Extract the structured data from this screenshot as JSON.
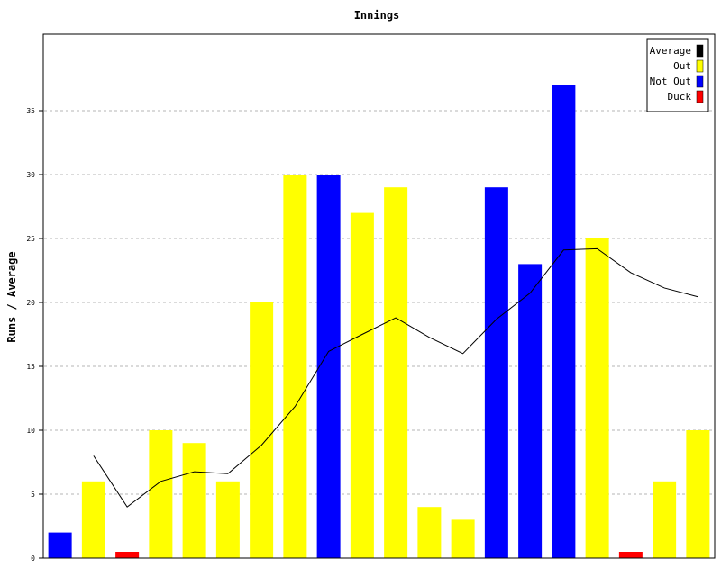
{
  "chart_data": {
    "type": "bar",
    "title": "Innings",
    "xlabel": "",
    "ylabel": "Runs / Average",
    "ylim": [
      0,
      41
    ],
    "yticks": [
      0,
      5,
      10,
      15,
      20,
      25,
      30,
      35
    ],
    "grid": true,
    "legend_position": "top-right",
    "legend": [
      {
        "label": "Average",
        "color": "#000000"
      },
      {
        "label": "Out",
        "color": "#ffff00"
      },
      {
        "label": "Not Out",
        "color": "#0000ff"
      },
      {
        "label": "Duck",
        "color": "#ff0000"
      }
    ],
    "bars": [
      {
        "value": 2,
        "status": "Not Out"
      },
      {
        "value": 6,
        "status": "Out"
      },
      {
        "value": 0,
        "status": "Duck"
      },
      {
        "value": 10,
        "status": "Out"
      },
      {
        "value": 9,
        "status": "Out"
      },
      {
        "value": 6,
        "status": "Out"
      },
      {
        "value": 20,
        "status": "Out"
      },
      {
        "value": 30,
        "status": "Out"
      },
      {
        "value": 30,
        "status": "Not Out"
      },
      {
        "value": 27,
        "status": "Out"
      },
      {
        "value": 29,
        "status": "Out"
      },
      {
        "value": 4,
        "status": "Out"
      },
      {
        "value": 3,
        "status": "Out"
      },
      {
        "value": 29,
        "status": "Not Out"
      },
      {
        "value": 23,
        "status": "Not Out"
      },
      {
        "value": 37,
        "status": "Not Out"
      },
      {
        "value": 25,
        "status": "Out"
      },
      {
        "value": 0,
        "status": "Duck"
      },
      {
        "value": 6,
        "status": "Out"
      },
      {
        "value": 10,
        "status": "Out"
      }
    ],
    "average": [
      null,
      8.0,
      4.0,
      6.0,
      6.75,
      6.6,
      8.83,
      11.86,
      16.17,
      17.5,
      18.8,
      17.27,
      16.0,
      18.69,
      20.73,
      24.1,
      24.2,
      22.33,
      21.13,
      20.44
    ]
  }
}
